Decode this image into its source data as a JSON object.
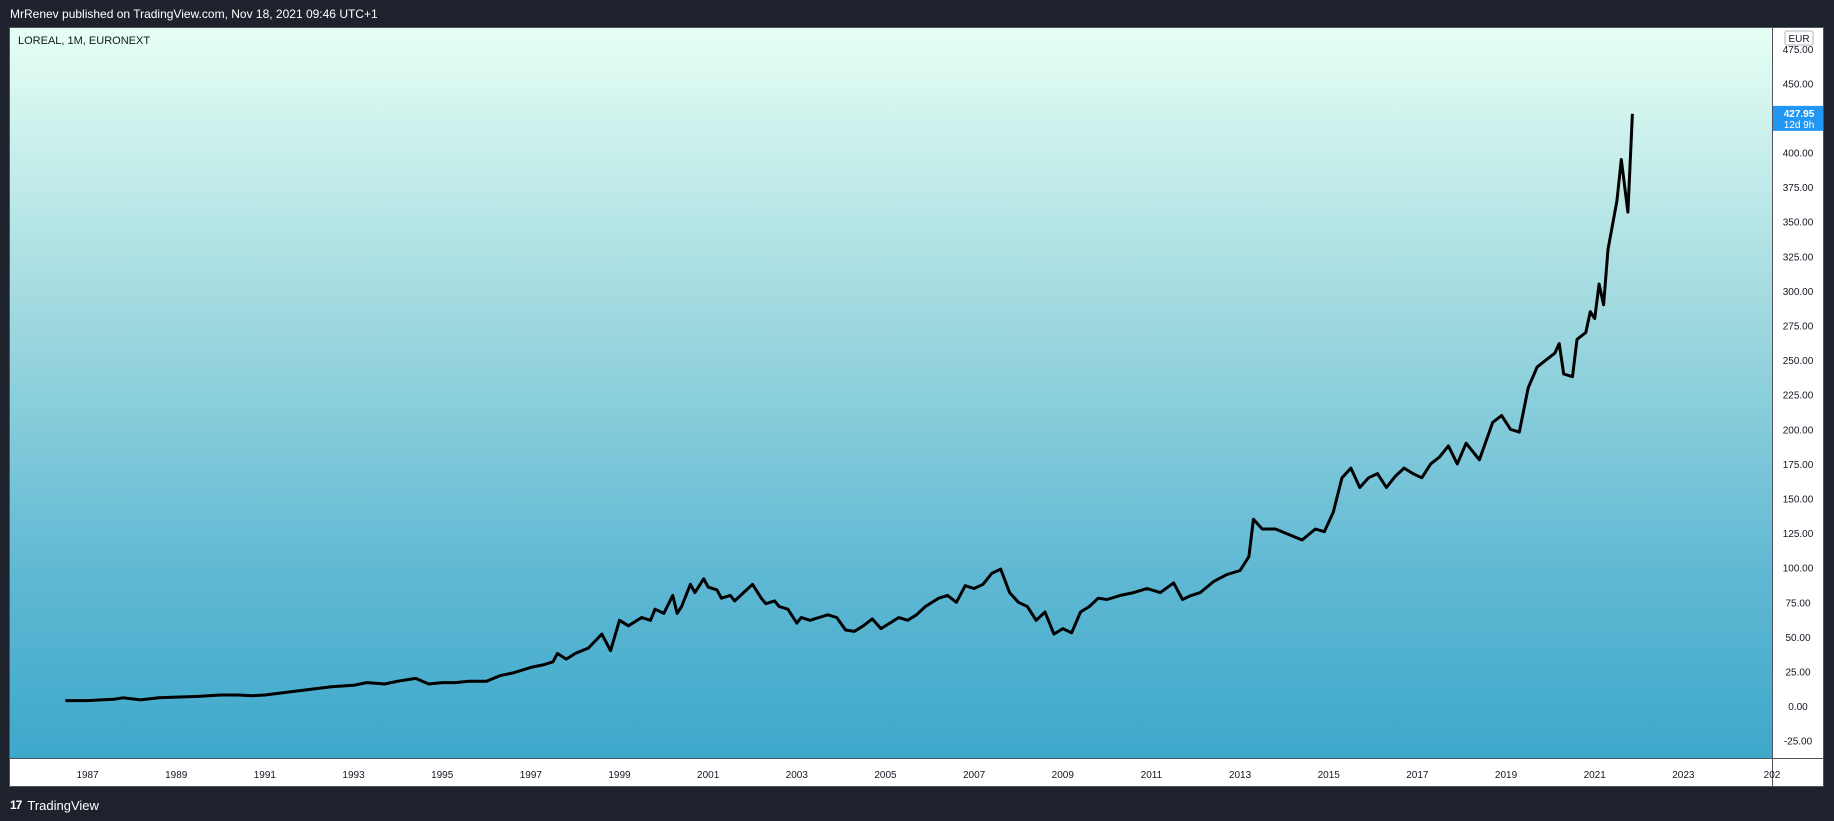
{
  "header": {
    "published": "MrRenev published on TradingView.com, Nov 18, 2021 09:46 UTC+1"
  },
  "footer": {
    "logo_glyph": "17",
    "brand": "TradingView"
  },
  "colors": {
    "line": "#000000",
    "last_price_bg": "#2196f3",
    "background": "#1e222d"
  },
  "chart_data": {
    "type": "line",
    "title": "LOREAL, 1M, EURONEXT",
    "currency": "EUR",
    "last_price": "427.95",
    "countdown": "12d 9h",
    "ylim": [
      -37.5,
      490
    ],
    "y_ticks": [
      "475.00",
      "450.00",
      "400.00",
      "375.00",
      "350.00",
      "325.00",
      "300.00",
      "275.00",
      "250.00",
      "225.00",
      "200.00",
      "175.00",
      "150.00",
      "125.00",
      "100.00",
      "75.00",
      "50.00",
      "25.00",
      "0.00",
      "-25.00"
    ],
    "xlim": [
      1985.25,
      2025.0
    ],
    "x_ticks": [
      "1987",
      "1989",
      "1991",
      "1993",
      "1995",
      "1997",
      "1999",
      "2001",
      "2003",
      "2005",
      "2007",
      "2009",
      "2011",
      "2013",
      "2015",
      "2017",
      "2019",
      "2021",
      "2023",
      "202"
    ],
    "grid": false,
    "series": [
      {
        "x": [
          1986.5,
          1987.0,
          1987.3,
          1987.6,
          1987.8,
          1988.2,
          1988.6,
          1989.0,
          1989.5,
          1990.0,
          1990.4,
          1990.7,
          1991.0,
          1991.5,
          1992.0,
          1992.5,
          1993.0,
          1993.3,
          1993.7,
          1994.0,
          1994.4,
          1994.7,
          1995.0,
          1995.3,
          1995.6,
          1996.0,
          1996.3,
          1996.6,
          1997.0,
          1997.3,
          1997.5,
          1997.6,
          1997.8,
          1998.0,
          1998.3,
          1998.6,
          1998.8,
          1999.0,
          1999.2,
          1999.5,
          1999.7,
          1999.8,
          2000.0,
          2000.2,
          2000.3,
          2000.4,
          2000.6,
          2000.7,
          2000.9,
          2001.0,
          2001.2,
          2001.3,
          2001.5,
          2001.6,
          2001.8,
          2002.0,
          2002.2,
          2002.3,
          2002.5,
          2002.6,
          2002.8,
          2003.0,
          2003.1,
          2003.3,
          2003.5,
          2003.7,
          2003.9,
          2004.1,
          2004.3,
          2004.5,
          2004.7,
          2004.9,
          2005.1,
          2005.3,
          2005.5,
          2005.7,
          2005.9,
          2006.2,
          2006.4,
          2006.6,
          2006.8,
          2007.0,
          2007.2,
          2007.4,
          2007.6,
          2007.8,
          2008.0,
          2008.2,
          2008.4,
          2008.6,
          2008.8,
          2009.0,
          2009.2,
          2009.4,
          2009.6,
          2009.8,
          2010.0,
          2010.3,
          2010.6,
          2010.9,
          2011.2,
          2011.5,
          2011.7,
          2011.9,
          2012.1,
          2012.4,
          2012.7,
          2013.0,
          2013.2,
          2013.3,
          2013.5,
          2013.8,
          2014.1,
          2014.4,
          2014.7,
          2014.9,
          2015.1,
          2015.3,
          2015.5,
          2015.7,
          2015.9,
          2016.1,
          2016.3,
          2016.5,
          2016.7,
          2016.9,
          2017.1,
          2017.3,
          2017.5,
          2017.7,
          2017.9,
          2018.1,
          2018.4,
          2018.7,
          2018.9,
          2019.1,
          2019.3,
          2019.5,
          2019.7,
          2019.9,
          2020.1,
          2020.2,
          2020.3,
          2020.5,
          2020.6,
          2020.8,
          2020.9,
          2021.0,
          2021.1,
          2021.2,
          2021.3,
          2021.5,
          2021.6,
          2021.75,
          2021.85
        ],
        "y": [
          4,
          4,
          4.5,
          5,
          6,
          4.5,
          6,
          6.5,
          7,
          8,
          8,
          7.5,
          8,
          10,
          12,
          14,
          15,
          17,
          16,
          18,
          20,
          16,
          17,
          17,
          18,
          18,
          22,
          24,
          28,
          30,
          32,
          38,
          34,
          38,
          42,
          52,
          40,
          62,
          58,
          64,
          62,
          70,
          67,
          80,
          67,
          72,
          88,
          82,
          92,
          86,
          84,
          78,
          80,
          76,
          82,
          88,
          78,
          74,
          76,
          72,
          70,
          60,
          64,
          62,
          64,
          66,
          64,
          55,
          54,
          58,
          63,
          56,
          60,
          64,
          62,
          66,
          72,
          78,
          80,
          75,
          87,
          85,
          88,
          96,
          99,
          82,
          75,
          72,
          62,
          68,
          52,
          56,
          53,
          68,
          72,
          78,
          77,
          80,
          82,
          85,
          82,
          89,
          77,
          80,
          82,
          90,
          95,
          98,
          108,
          135,
          128,
          128,
          124,
          120,
          128,
          126,
          140,
          165,
          172,
          158,
          165,
          168,
          158,
          166,
          172,
          168,
          165,
          175,
          180,
          188,
          175,
          190,
          178,
          205,
          210,
          200,
          198,
          230,
          245,
          250,
          255,
          262,
          240,
          238,
          265,
          270,
          285,
          280,
          305,
          290,
          330,
          365,
          395,
          357,
          428
        ]
      }
    ]
  }
}
